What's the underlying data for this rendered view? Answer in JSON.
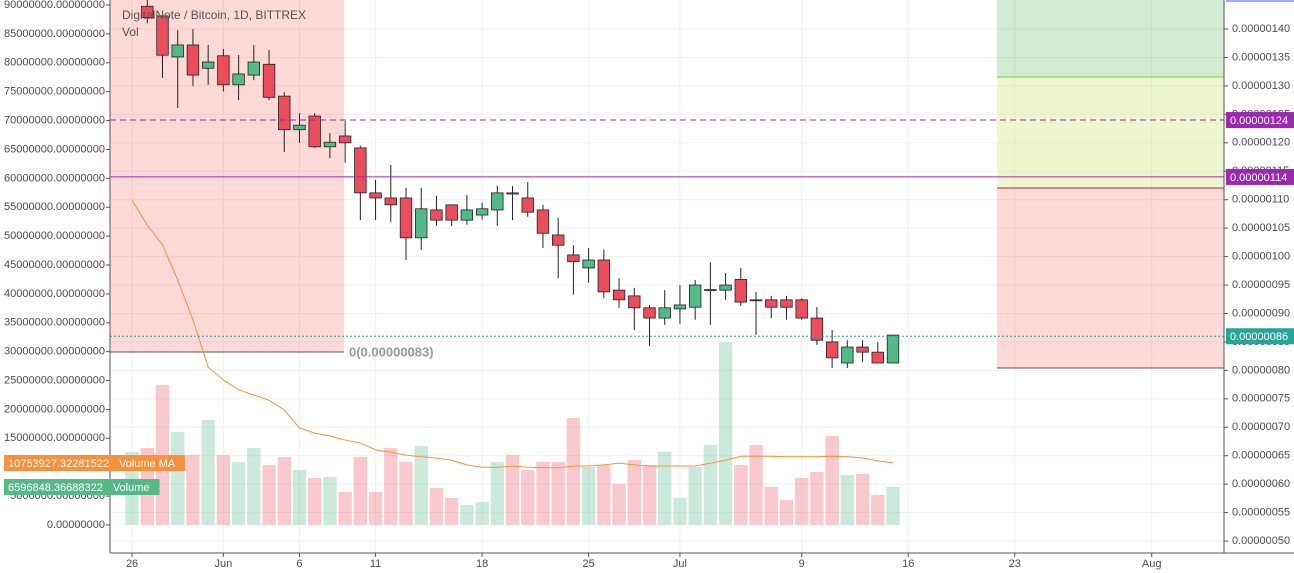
{
  "chart_data": {
    "type": "candlestick",
    "title": "DigitalNote / Bitcoin, 1D, BITTREX",
    "subtitle": "Vol",
    "x": [
      0,
      1,
      2,
      3,
      4,
      5,
      6,
      7,
      8,
      9,
      10,
      11,
      12,
      13,
      14,
      15,
      16,
      17,
      18,
      19,
      20,
      21,
      22,
      23,
      24,
      25,
      26,
      27,
      28,
      29,
      30,
      31,
      32,
      33,
      34,
      35,
      36,
      37,
      38,
      39,
      40,
      41,
      42,
      43,
      44,
      45,
      46,
      47,
      48,
      49,
      50
    ],
    "open": [
      null,
      1.44e-06,
      1.423e-06,
      1.351e-06,
      1.372e-06,
      1.331e-06,
      1.353e-06,
      1.302e-06,
      1.319e-06,
      1.338e-06,
      1.282e-06,
      1.223e-06,
      1.247e-06,
      1.193e-06,
      1.212e-06,
      1.191e-06,
      1.112e-06,
      1.103e-06,
      1.103e-06,
      1.033e-06,
      1.082e-06,
      1.091e-06,
      1.064e-06,
      1.073e-06,
      1.082e-06,
      1.112e-06,
      1.103e-06,
      1.082e-06,
      1.038e-06,
      1.003e-06,
      9.8e-07,
      9.94e-07,
      9.41e-07,
      9.31e-07,
      9.1e-07,
      8.92e-07,
      9.08e-07,
      9.11e-07,
      9.41e-07,
      9.41e-07,
      9.6e-07,
      9.24e-07,
      9.24e-07,
      9.24e-07,
      9.24e-07,
      8.92e-07,
      8.5e-07,
      8.13e-07,
      8.41e-07,
      8.32e-07,
      8.13e-07
    ],
    "high": [
      null,
      1.46e-06,
      1.43e-06,
      1.398e-06,
      1.4e-06,
      1.372e-06,
      1.365e-06,
      1.354e-06,
      1.372e-06,
      1.363e-06,
      1.289e-06,
      1.252e-06,
      1.252e-06,
      1.217e-06,
      1.238e-06,
      1.195e-06,
      1.135e-06,
      1.161e-06,
      1.121e-06,
      1.121e-06,
      1.107e-06,
      1.091e-06,
      1.108e-06,
      1.095e-06,
      1.124e-06,
      1.124e-06,
      1.131e-06,
      1.091e-06,
      1.068e-06,
      1.02e-06,
      1.015e-06,
      1.012e-06,
      9.62e-07,
      9.45e-07,
      9.15e-07,
      9.41e-07,
      9.5e-07,
      9.59e-07,
      9.9e-07,
      9.71e-07,
      9.8e-07,
      9.38e-07,
      9.31e-07,
      9.31e-07,
      9.27e-07,
      9.11e-07,
      8.71e-07,
      8.53e-07,
      8.53e-07,
      8.5e-07,
      8.62e-07
    ],
    "low": [
      null,
      1.41e-06,
      1.314e-06,
      1.261e-06,
      1.3e-06,
      1.302e-06,
      1.29e-06,
      1.275e-06,
      1.31e-06,
      1.275e-06,
      1.184e-06,
      1.2e-06,
      1.191e-06,
      1.173e-06,
      1.165e-06,
      1.064e-06,
      1.064e-06,
      1.061e-06,
      9.94e-07,
      1.012e-06,
      1.054e-06,
      1.054e-06,
      1.056e-06,
      1.065e-06,
      1.054e-06,
      1.064e-06,
      1.07e-06,
      1.015e-06,
      9.62e-07,
      9.33e-07,
      9.54e-07,
      9.27e-07,
      9.1e-07,
      8.71e-07,
      8.43e-07,
      8.8e-07,
      8.82e-07,
      8.89e-07,
      8.8e-07,
      9.24e-07,
      9.13e-07,
      8.62e-07,
      8.92e-07,
      8.89e-07,
      8.89e-07,
      8.45e-07,
      8.04e-07,
      8.04e-07,
      8.15e-07,
      8.13e-07,
      8.13e-07
    ],
    "close": [
      null,
      1.42e-06,
      1.354e-06,
      1.372e-06,
      1.319e-06,
      1.342e-06,
      1.302e-06,
      1.321e-06,
      1.342e-06,
      1.28e-06,
      1.223e-06,
      1.231e-06,
      1.193e-06,
      1.201e-06,
      1.2e-06,
      1.112e-06,
      1.103e-06,
      1.091e-06,
      1.033e-06,
      1.084e-06,
      1.064e-06,
      1.064e-06,
      1.082e-06,
      1.084e-06,
      1.112e-06,
      1.11e-06,
      1.078e-06,
      1.041e-06,
      1.02e-06,
      9.91e-07,
      9.94e-07,
      9.38e-07,
      9.24e-07,
      9.1e-07,
      8.92e-07,
      9.1e-07,
      9.15e-07,
      9.5e-07,
      9.42e-07,
      9.5e-07,
      9.2e-07,
      9.23e-07,
      9.11e-07,
      9.11e-07,
      8.92e-07,
      8.53e-07,
      8.22e-07,
      8.41e-07,
      8.32e-07,
      8.13e-07,
      8.62e-07
    ],
    "up_color": "#53b987",
    "down_color": "#eb4d5c",
    "series": [
      {
        "name": "Volume",
        "axis": "y2",
        "color": "#53b987",
        "last_label": {
          "value": 6596848.36688322,
          "label": "6596848.36688322"
        },
        "values": [
          12630000,
          13330000,
          24230000,
          16100000,
          12110000,
          18170000,
          12110000,
          10900000,
          13330000,
          10380000,
          11770000,
          9520000,
          8130000,
          8310000,
          5710000,
          11770000,
          5710000,
          13330000,
          10900000,
          13670000,
          6400000,
          4670000,
          3460000,
          3980000,
          10900000,
          12110000,
          9520000,
          10900000,
          10900000,
          18520000,
          10040000,
          10380000,
          7100000,
          11250000,
          10380000,
          12630000,
          4670000,
          10040000,
          13850000,
          31670000,
          10380000,
          13850000,
          6580000,
          4330000,
          8130000,
          9170000,
          15400000,
          8650000,
          8830000,
          5190000,
          6596848
        ]
      },
      {
        "name": "Volume MA",
        "axis": "y2",
        "color": "#f7913b",
        "last_label": {
          "value": 10753927.32281522,
          "label": "10753927.32281522"
        },
        "values": [
          56200000,
          51900000,
          48500000,
          42400000,
          35500000,
          27300000,
          25100000,
          23400000,
          22500000,
          21600000,
          19900000,
          16800000,
          15900000,
          15400000,
          14700000,
          14200000,
          13000000,
          12600000,
          12100000,
          11800000,
          11600000,
          11200000,
          10400000,
          10000000,
          10000000,
          10200000,
          10000000,
          9900000,
          9900000,
          10200000,
          10200000,
          10400000,
          10700000,
          10400000,
          10200000,
          10200000,
          10200000,
          10200000,
          10700000,
          11200000,
          11900000,
          11900000,
          11900000,
          11800000,
          11800000,
          11800000,
          11900000,
          11800000,
          11600000,
          11100000,
          10753927
        ]
      }
    ],
    "price_lines": [
      {
        "value": 1.24e-06,
        "label": "0.00000124",
        "color": "#9c27b0",
        "style": "dashed"
      },
      {
        "value": 1.14e-06,
        "label": "0.00000114",
        "color": "#9c27b0",
        "style": "solid"
      },
      {
        "value": 8.6e-07,
        "label": "0.00000086",
        "color": "#26a69a",
        "style": "dotted"
      }
    ],
    "zone_label": {
      "value": 8.3e-07,
      "label": "0(0.00000083)"
    },
    "grid": true,
    "xlim": [
      -1.45,
      71.75
    ],
    "xticks": [
      {
        "value": 0,
        "label": "26"
      },
      {
        "value": 6,
        "label": "Jun"
      },
      {
        "value": 11,
        "label": "6"
      },
      {
        "value": 16,
        "label": "11"
      },
      {
        "value": 23,
        "label": "18"
      },
      {
        "value": 30,
        "label": "25"
      },
      {
        "value": 36,
        "label": "Jul"
      },
      {
        "value": 44,
        "label": "9"
      },
      {
        "value": 51,
        "label": "16"
      },
      {
        "value": 58,
        "label": "23"
      },
      {
        "value": 67,
        "label": "Aug"
      }
    ],
    "ylim": [
      4.79e-07,
      1.451e-06
    ],
    "yticks": [
      {
        "value": 1.4e-06,
        "label": "0.00000140"
      },
      {
        "value": 1.35e-06,
        "label": "0.00000135"
      },
      {
        "value": 1.3e-06,
        "label": "0.00000130"
      },
      {
        "value": 1.25e-06,
        "label": "0.00000125"
      },
      {
        "value": 1.2e-06,
        "label": "0.00000120"
      },
      {
        "value": 1.15e-06,
        "label": "0.00000115"
      },
      {
        "value": 1.1e-06,
        "label": "0.00000110"
      },
      {
        "value": 1.05e-06,
        "label": "0.00000105"
      },
      {
        "value": 1e-06,
        "label": "0.00000100"
      },
      {
        "value": 9.5e-07,
        "label": "0.00000095"
      },
      {
        "value": 9e-07,
        "label": "0.00000090"
      },
      {
        "value": 8.5e-07,
        "label": "0.00000085"
      },
      {
        "value": 8e-07,
        "label": "0.00000080"
      },
      {
        "value": 7.5e-07,
        "label": "0.00000075"
      },
      {
        "value": 7e-07,
        "label": "0.00000070"
      },
      {
        "value": 6.5e-07,
        "label": "0.00000065"
      },
      {
        "value": 6e-07,
        "label": "0.00000060"
      },
      {
        "value": 5.5e-07,
        "label": "0.00000055"
      },
      {
        "value": 5e-07,
        "label": "0.00000050"
      }
    ],
    "y2lim": [
      -4850000,
      90870000
    ],
    "y2ticks": [
      {
        "value": 90000000,
        "label": "90000000.00000000"
      },
      {
        "value": 85000000,
        "label": "85000000.00000000"
      },
      {
        "value": 80000000,
        "label": "80000000.00000000"
      },
      {
        "value": 75000000,
        "label": "75000000.00000000"
      },
      {
        "value": 70000000,
        "label": "70000000.00000000"
      },
      {
        "value": 65000000,
        "label": "65000000.00000000"
      },
      {
        "value": 60000000,
        "label": "60000000.00000000"
      },
      {
        "value": 55000000,
        "label": "55000000.00000000"
      },
      {
        "value": 50000000,
        "label": "50000000.00000000"
      },
      {
        "value": 45000000,
        "label": "45000000.00000000"
      },
      {
        "value": 40000000,
        "label": "40000000.00000000"
      },
      {
        "value": 35000000,
        "label": "35000000.00000000"
      },
      {
        "value": 30000000,
        "label": "30000000.00000000"
      },
      {
        "value": 25000000,
        "label": "25000000.00000000"
      },
      {
        "value": 20000000,
        "label": "20000000.00000000"
      },
      {
        "value": 15000000,
        "label": "15000000.00000000"
      },
      {
        "value": 10000000,
        "label": "10000000.00000000"
      },
      {
        "value": 5000000,
        "label": "5000000.00000000"
      },
      {
        "value": 0,
        "label": "0.00000000"
      }
    ]
  }
}
